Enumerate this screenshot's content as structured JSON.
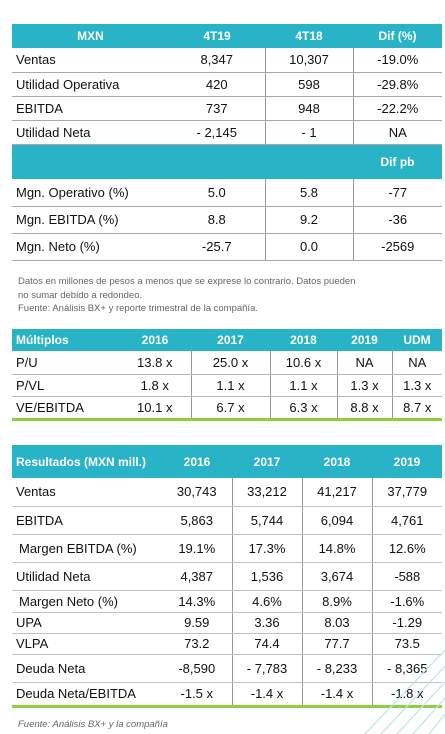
{
  "table1": {
    "header": [
      "MXN",
      "4T19",
      "4T18",
      "Dif (%)"
    ],
    "rows": [
      {
        "label": "Ventas",
        "v1": "8,347",
        "v2": "10,307",
        "v3": "-19.0%"
      },
      {
        "label": "Utilidad Operativa",
        "v1": "420",
        "v2": "598",
        "v3": "-29.8%"
      },
      {
        "label": "EBITDA",
        "v1": "737",
        "v2": "948",
        "v3": "-22.2%"
      },
      {
        "label": "Utilidad Neta",
        "v1": "- 2,145",
        "v2": "- 1",
        "v3": "NA"
      }
    ],
    "subheader": "Dif pb",
    "rows2": [
      {
        "label": "Mgn. Operativo (%)",
        "v1": "5.0",
        "v2": "5.8",
        "v3": "-77"
      },
      {
        "label": "Mgn. EBITDA (%)",
        "v1": "8.8",
        "v2": "9.2",
        "v3": "-36"
      },
      {
        "label": "Mgn. Neto (%)",
        "v1": "-25.7",
        "v2": "0.0",
        "v3": "-2569"
      }
    ]
  },
  "note": {
    "line1": "Datos en millones de pesos a menos que se exprese lo contrario. Datos pueden",
    "line2": "no sumar debido a redondeo.",
    "line3": "Fuente: Análisis BX+ y reporte trimestral de la compañía."
  },
  "table2": {
    "header": [
      "Múltiplos",
      "2016",
      "2017",
      "2018",
      "2019",
      "UDM"
    ],
    "rows": [
      {
        "label": "P/U",
        "c1": "13.8 x",
        "c2": "25.0 x",
        "c3": "10.6 x",
        "c4": "NA",
        "c5": "NA"
      },
      {
        "label": "P/VL",
        "c1": "1.8 x",
        "c2": "1.1 x",
        "c3": "1.1 x",
        "c4": "1.3 x",
        "c5": "1.3 x"
      },
      {
        "label": "VE/EBITDA",
        "c1": "10.1 x",
        "c2": "6.7 x",
        "c3": "6.3 x",
        "c4": "8.8 x",
        "c5": "8.7 x"
      }
    ]
  },
  "table3": {
    "header": [
      "Resultados (MXN mill.)",
      "2016",
      "2017",
      "2018",
      "2019"
    ],
    "rows": [
      {
        "label": "Ventas",
        "c1": "30,743",
        "c2": "33,212",
        "c3": "41,217",
        "c4": "37,779"
      },
      {
        "label": "EBITDA",
        "c1": "5,863",
        "c2": "5,744",
        "c3": "6,094",
        "c4": "4,761"
      },
      {
        "label": "Margen EBITDA (%)",
        "c1": "19.1%",
        "c2": "17.3%",
        "c3": "14.8%",
        "c4": "12.6%"
      },
      {
        "label": "Utilidad Neta",
        "c1": "4,387",
        "c2": "1,536",
        "c3": "3,674",
        "c4": "-588"
      },
      {
        "label": "Margen Neto (%)",
        "c1": "14.3%",
        "c2": "4.6%",
        "c3": "8.9%",
        "c4": "-1.6%"
      },
      {
        "label": "UPA",
        "c1": "9.59",
        "c2": "3.36",
        "c3": "8.03",
        "c4": "-1.29"
      },
      {
        "label": "VLPA",
        "c1": "73.2",
        "c2": "74.4",
        "c3": "77.7",
        "c4": "73.5"
      },
      {
        "label": "Deuda Neta",
        "c1": "-8,590",
        "c2": "- 7,783",
        "c3": "- 8,233",
        "c4": "- 8,365"
      },
      {
        "label": "Deuda Neta/EBITDA",
        "c1": "-1.5 x",
        "c2": "-1.4 x",
        "c3": "-1.4 x",
        "c4": "-1.8 x"
      }
    ]
  },
  "source": "Fuente: Análisis BX+ y la compañía",
  "colors": {
    "header": "#29b3c7",
    "accent_line": "#8fcf3a",
    "decor": "#bfe3eb"
  }
}
